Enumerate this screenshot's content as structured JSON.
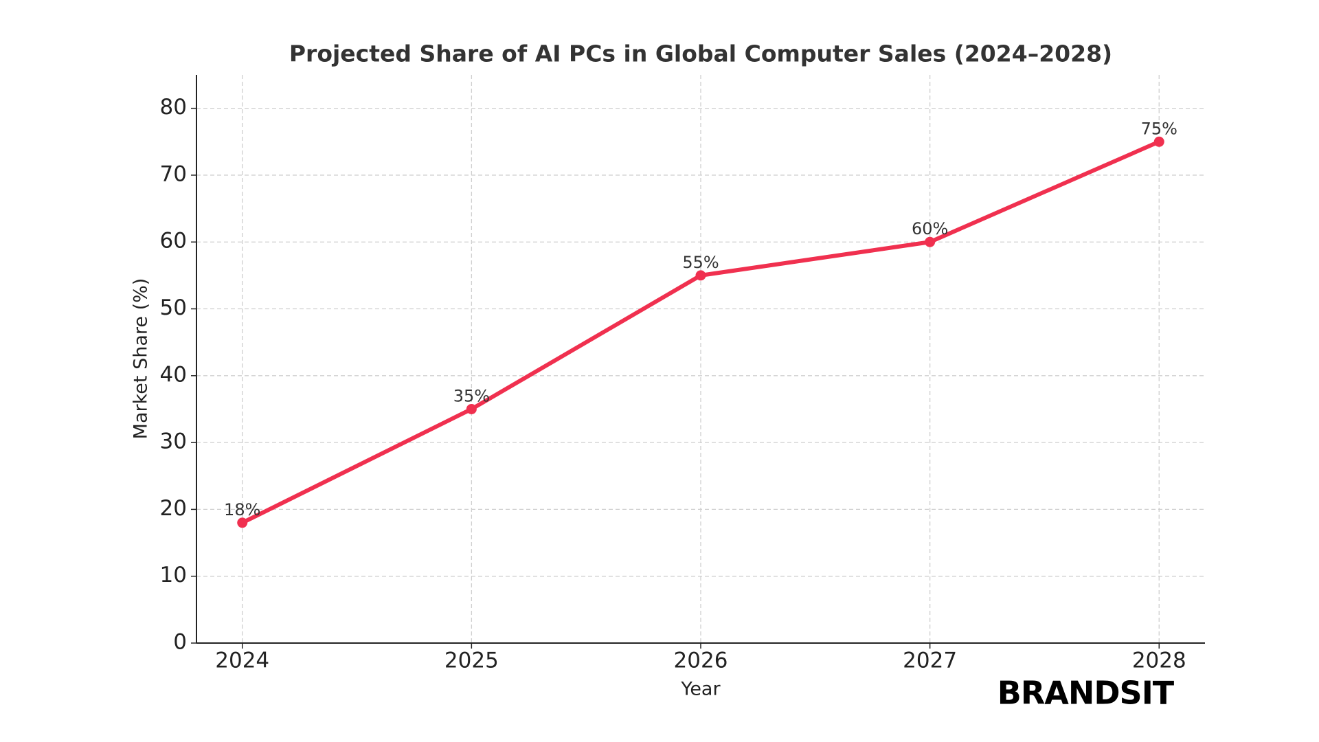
{
  "chart_data": {
    "type": "line",
    "title": "Projected Share of AI PCs in Global Computer Sales (2024–2028)",
    "x_label": "Year",
    "y_label": "Market Share (%)",
    "x": [
      2024,
      2025,
      2026,
      2027,
      2028
    ],
    "values": [
      18,
      35,
      55,
      60,
      75
    ],
    "value_labels": [
      "18%",
      "35%",
      "55%",
      "60%",
      "75%"
    ],
    "color": "#f0304f",
    "xlim": [
      2023.8,
      2028.2
    ],
    "xticks": [
      2024,
      2025,
      2026,
      2027,
      2028
    ],
    "ylim": [
      0,
      85
    ],
    "yticks": [
      0,
      10,
      20,
      30,
      40,
      50,
      60,
      70,
      80
    ],
    "grid": true,
    "watermark": "BRANDSIT"
  }
}
